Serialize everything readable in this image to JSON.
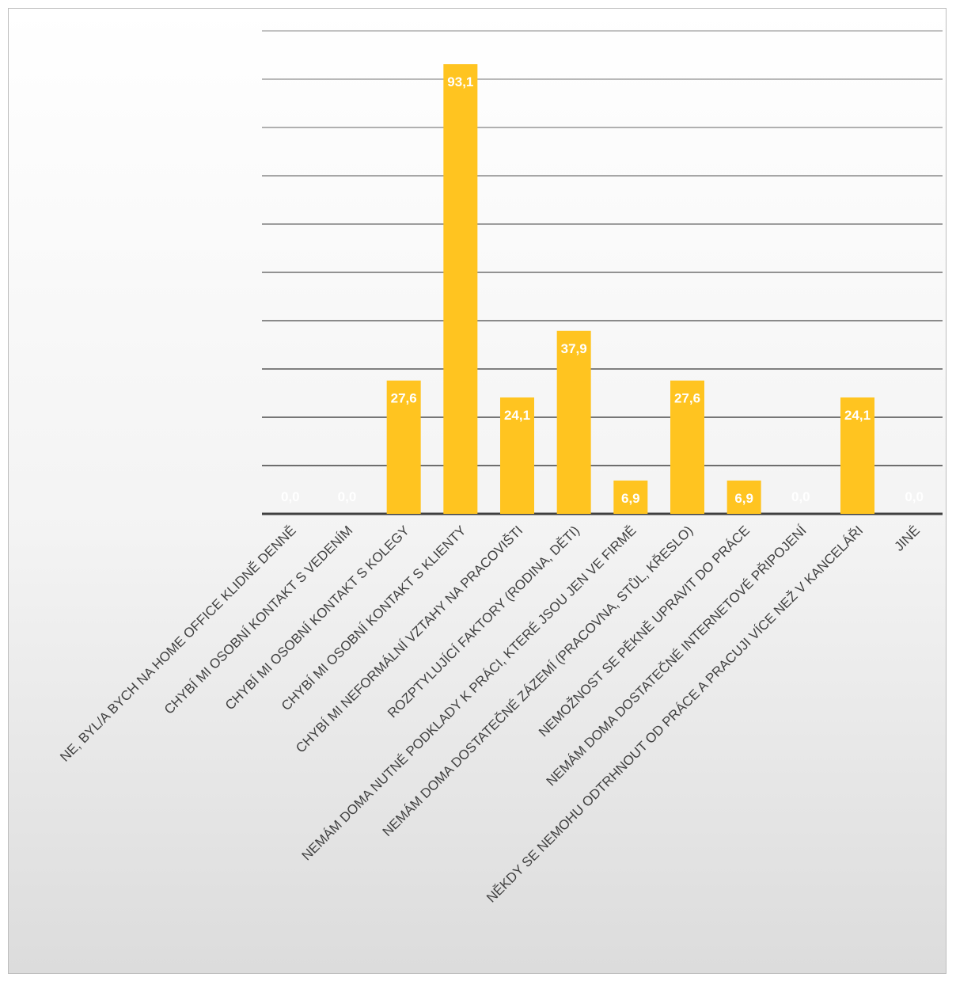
{
  "chart_data": {
    "type": "bar",
    "categories": [
      "NE, BYL/A BYCH NA HOME OFFICE KLIDNĚ DENNĚ",
      "CHYBÍ MI OSOBNÍ KONTAKT S VEDENÍM",
      "CHYBÍ MI OSOBNÍ KONTAKT S KOLEGY",
      "CHYBÍ MI OSOBNÍ KONTAKT S KLIENTY",
      "CHYBÍ MI NEFORMÁLNÍ VZTAHY NA PRACOVIŠTI",
      "ROZPTYLUJÍCÍ FAKTORY (RODINA, DĚTI)",
      "NEMÁM DOMA NUTNÉ PODKLADY K PRÁCI, KTERÉ JSOU JEN VE FIRMĚ",
      "NEMÁM DOMA DOSTATEČNÉ ZÁZEMÍ (PRACOVNA, STŮL, KŘESLO)",
      "NEMOŽNOST SE PĚKNĚ UPRAVIT DO PRÁCE",
      "NEMÁM DOMA DOSTATEČNÉ INTERNETOVÉ PŘIPOJENÍ",
      "NĚKDY SE NEMOHU ODTRHNOUT OD PRÁCE A PRACUJI VÍCE NEŽ V KANCELÁŘI",
      "JINÉ"
    ],
    "values": [
      0.0,
      0.0,
      27.6,
      93.1,
      24.1,
      37.9,
      6.9,
      27.6,
      6.9,
      0.0,
      24.1,
      0.0
    ],
    "value_labels": [
      "0,0",
      "0,0",
      "27,6",
      "93,1",
      "24,1",
      "37,9",
      "6,9",
      "27,6",
      "6,9",
      "0,0",
      "24,1",
      "0,0"
    ],
    "ylim": [
      0,
      100
    ],
    "y_gridlines": [
      10,
      20,
      30,
      40,
      50,
      60,
      70,
      80,
      90,
      100
    ],
    "grid": true,
    "legend": "none",
    "title": "",
    "xlabel": "",
    "ylabel": "",
    "colors": {
      "bar": "#FFC420",
      "gridline": "#a6a6a6",
      "baseline": "#404040",
      "data_label": "#ffffff",
      "category_label": "#404040"
    }
  }
}
